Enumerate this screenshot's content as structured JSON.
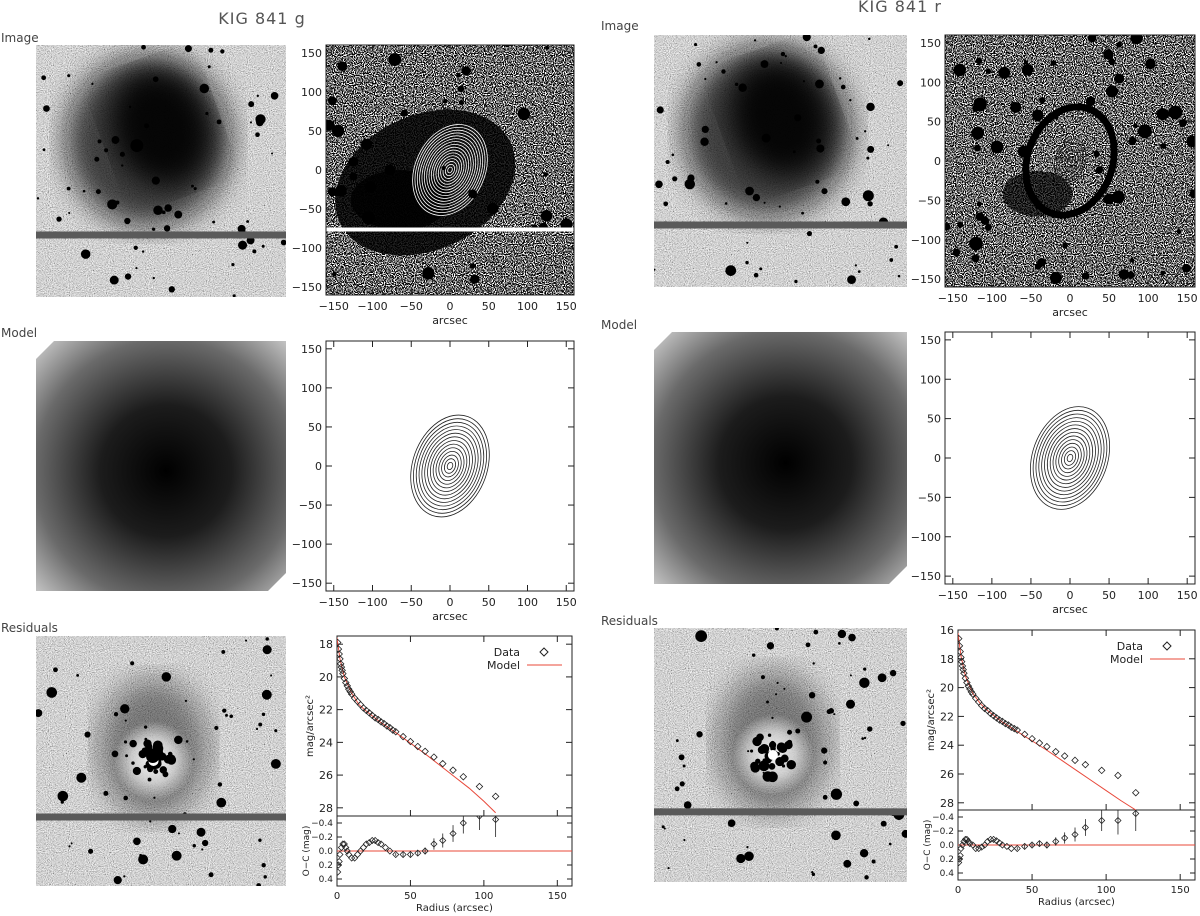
{
  "panels": [
    {
      "title": "KIG 841 g",
      "row_labels": [
        "Image",
        "Model",
        "Residuals"
      ],
      "contour_axes": {
        "x_ticks": [
          -150,
          -100,
          -50,
          0,
          50,
          100,
          150
        ],
        "y_ticks": [
          150,
          100,
          50,
          0,
          -50,
          -100,
          -150
        ],
        "xlabel": "arcsec"
      }
    },
    {
      "title": "KIG 841 r",
      "row_labels": [
        "Image",
        "Model",
        "Residuals"
      ],
      "contour_axes": {
        "x_ticks": [
          -150,
          -100,
          -50,
          0,
          50,
          100,
          150
        ],
        "y_ticks": [
          150,
          100,
          50,
          0,
          -50,
          -100,
          -150
        ],
        "xlabel": "arcsec"
      }
    }
  ],
  "chart_data": [
    {
      "type": "scatter",
      "band": "g",
      "ylabel": "mag/arcsec²",
      "xlabel": "Radius (arcsec)",
      "xlim": [
        0,
        160
      ],
      "ylim": [
        28.5,
        17.5
      ],
      "x_ticks": [
        0,
        50,
        100,
        150
      ],
      "y_ticks": [
        18,
        20,
        22,
        24,
        26,
        28
      ],
      "legend": {
        "position": "top-right",
        "data_label": "Data",
        "model_label": "Model"
      },
      "series": [
        {
          "name": "Data",
          "x": [
            0.5,
            1,
            1.5,
            2,
            2.5,
            3,
            3.5,
            4,
            5,
            6,
            7,
            8,
            9,
            10,
            12,
            14,
            16,
            18,
            20,
            22,
            24,
            26,
            28,
            30,
            32,
            34,
            36,
            38,
            40,
            45,
            50,
            55,
            60,
            66,
            72,
            79,
            86,
            97,
            108
          ],
          "y": [
            17.9,
            18.3,
            18.6,
            18.9,
            19.2,
            19.4,
            19.6,
            19.8,
            20.1,
            20.35,
            20.55,
            20.75,
            20.9,
            21.05,
            21.3,
            21.5,
            21.7,
            21.9,
            22.05,
            22.2,
            22.35,
            22.5,
            22.6,
            22.75,
            22.85,
            23.0,
            23.1,
            23.25,
            23.35,
            23.65,
            23.95,
            24.25,
            24.55,
            24.9,
            25.3,
            25.7,
            26.1,
            26.7,
            27.3
          ]
        },
        {
          "name": "Model",
          "x": [
            0,
            2,
            5,
            10,
            15,
            20,
            30,
            40,
            50,
            60,
            70,
            80,
            90,
            100,
            108
          ],
          "y": [
            17.6,
            18.9,
            20.0,
            21.0,
            21.7,
            22.1,
            22.8,
            23.4,
            24.05,
            24.7,
            25.4,
            26.1,
            26.8,
            27.6,
            28.3
          ]
        }
      ],
      "residuals": {
        "ylabel": "O−C (mag)",
        "ylim": [
          0.5,
          -0.5
        ],
        "y_ticks": [
          -0.4,
          -0.2,
          0.0,
          0.2,
          0.4
        ],
        "x": [
          0.5,
          1,
          1.5,
          2,
          3,
          4,
          5,
          6,
          7,
          8,
          10,
          12,
          14,
          16,
          18,
          20,
          22,
          24,
          26,
          28,
          30,
          33,
          36,
          40,
          45,
          50,
          55,
          60,
          66,
          72,
          79,
          86,
          97,
          108
        ],
        "y": [
          0.3,
          0.2,
          0.15,
          0.05,
          -0.05,
          -0.1,
          -0.1,
          -0.05,
          0.0,
          0.05,
          0.1,
          0.1,
          0.05,
          0.0,
          -0.05,
          -0.1,
          -0.12,
          -0.15,
          -0.15,
          -0.12,
          -0.1,
          -0.05,
          0.0,
          0.05,
          0.05,
          0.05,
          0.03,
          0.0,
          -0.1,
          -0.15,
          -0.25,
          -0.4,
          -0.5,
          -0.45
        ],
        "err": [
          0,
          0,
          0,
          0,
          0,
          0,
          0,
          0,
          0,
          0,
          0,
          0,
          0,
          0,
          0,
          0,
          0,
          0,
          0,
          0,
          0,
          0,
          0,
          0.02,
          0.03,
          0.03,
          0.04,
          0.05,
          0.08,
          0.1,
          0.12,
          0.15,
          0.2,
          0.25
        ]
      }
    },
    {
      "type": "scatter",
      "band": "r",
      "ylabel": "mag/arcsec²",
      "xlabel": "Radius (arcsec)",
      "xlim": [
        0,
        160
      ],
      "ylim": [
        28.5,
        16.0
      ],
      "x_ticks": [
        0,
        50,
        100,
        150
      ],
      "y_ticks": [
        16,
        18,
        20,
        22,
        24,
        26,
        28
      ],
      "legend": {
        "position": "top-right",
        "data_label": "Data",
        "model_label": "Model"
      },
      "series": [
        {
          "name": "Data",
          "x": [
            0.5,
            1,
            1.5,
            2,
            2.5,
            3,
            3.5,
            4,
            5,
            6,
            7,
            8,
            9,
            10,
            12,
            14,
            16,
            18,
            20,
            22,
            24,
            26,
            28,
            30,
            32,
            34,
            36,
            38,
            40,
            45,
            50,
            55,
            60,
            66,
            72,
            79,
            86,
            97,
            108,
            120
          ],
          "y": [
            16.6,
            17.1,
            17.5,
            17.9,
            18.2,
            18.5,
            18.75,
            19.0,
            19.35,
            19.65,
            19.9,
            20.1,
            20.3,
            20.45,
            20.75,
            21.0,
            21.25,
            21.45,
            21.6,
            21.8,
            21.95,
            22.1,
            22.25,
            22.35,
            22.5,
            22.6,
            22.75,
            22.85,
            22.95,
            23.25,
            23.55,
            23.85,
            24.1,
            24.45,
            24.75,
            25.05,
            25.35,
            25.75,
            26.1,
            27.3
          ]
        },
        {
          "name": "Model",
          "x": [
            0,
            2,
            5,
            10,
            15,
            20,
            30,
            40,
            50,
            60,
            70,
            80,
            90,
            100,
            110,
            120
          ],
          "y": [
            16.2,
            17.8,
            19.2,
            20.4,
            21.1,
            21.6,
            22.4,
            23.05,
            23.7,
            24.35,
            25.05,
            25.75,
            26.45,
            27.15,
            27.85,
            28.5
          ]
        }
      ],
      "residuals": {
        "ylabel": "O−C (mag)",
        "ylim": [
          0.5,
          -0.5
        ],
        "y_ticks": [
          -0.4,
          -0.2,
          0.0,
          0.2,
          0.4
        ],
        "x": [
          0.5,
          1,
          1.5,
          2,
          3,
          4,
          5,
          6,
          7,
          8,
          10,
          12,
          14,
          16,
          18,
          20,
          22,
          24,
          26,
          28,
          30,
          33,
          36,
          40,
          45,
          50,
          55,
          60,
          66,
          72,
          79,
          86,
          97,
          108,
          120
        ],
        "y": [
          0.25,
          0.2,
          0.15,
          0.05,
          0.0,
          -0.05,
          -0.08,
          -0.08,
          -0.05,
          -0.02,
          0.0,
          0.05,
          0.05,
          0.03,
          0.0,
          -0.05,
          -0.08,
          -0.08,
          -0.06,
          -0.03,
          0.0,
          0.02,
          0.05,
          0.05,
          0.02,
          0.0,
          -0.02,
          0.0,
          -0.05,
          -0.1,
          -0.15,
          -0.25,
          -0.35,
          -0.35,
          -0.45
        ],
        "err": [
          0,
          0,
          0,
          0,
          0,
          0,
          0,
          0,
          0,
          0,
          0,
          0,
          0,
          0,
          0,
          0,
          0,
          0,
          0,
          0,
          0,
          0,
          0,
          0.02,
          0.03,
          0.03,
          0.04,
          0.05,
          0.06,
          0.08,
          0.1,
          0.12,
          0.15,
          0.2,
          0.25
        ]
      }
    }
  ]
}
